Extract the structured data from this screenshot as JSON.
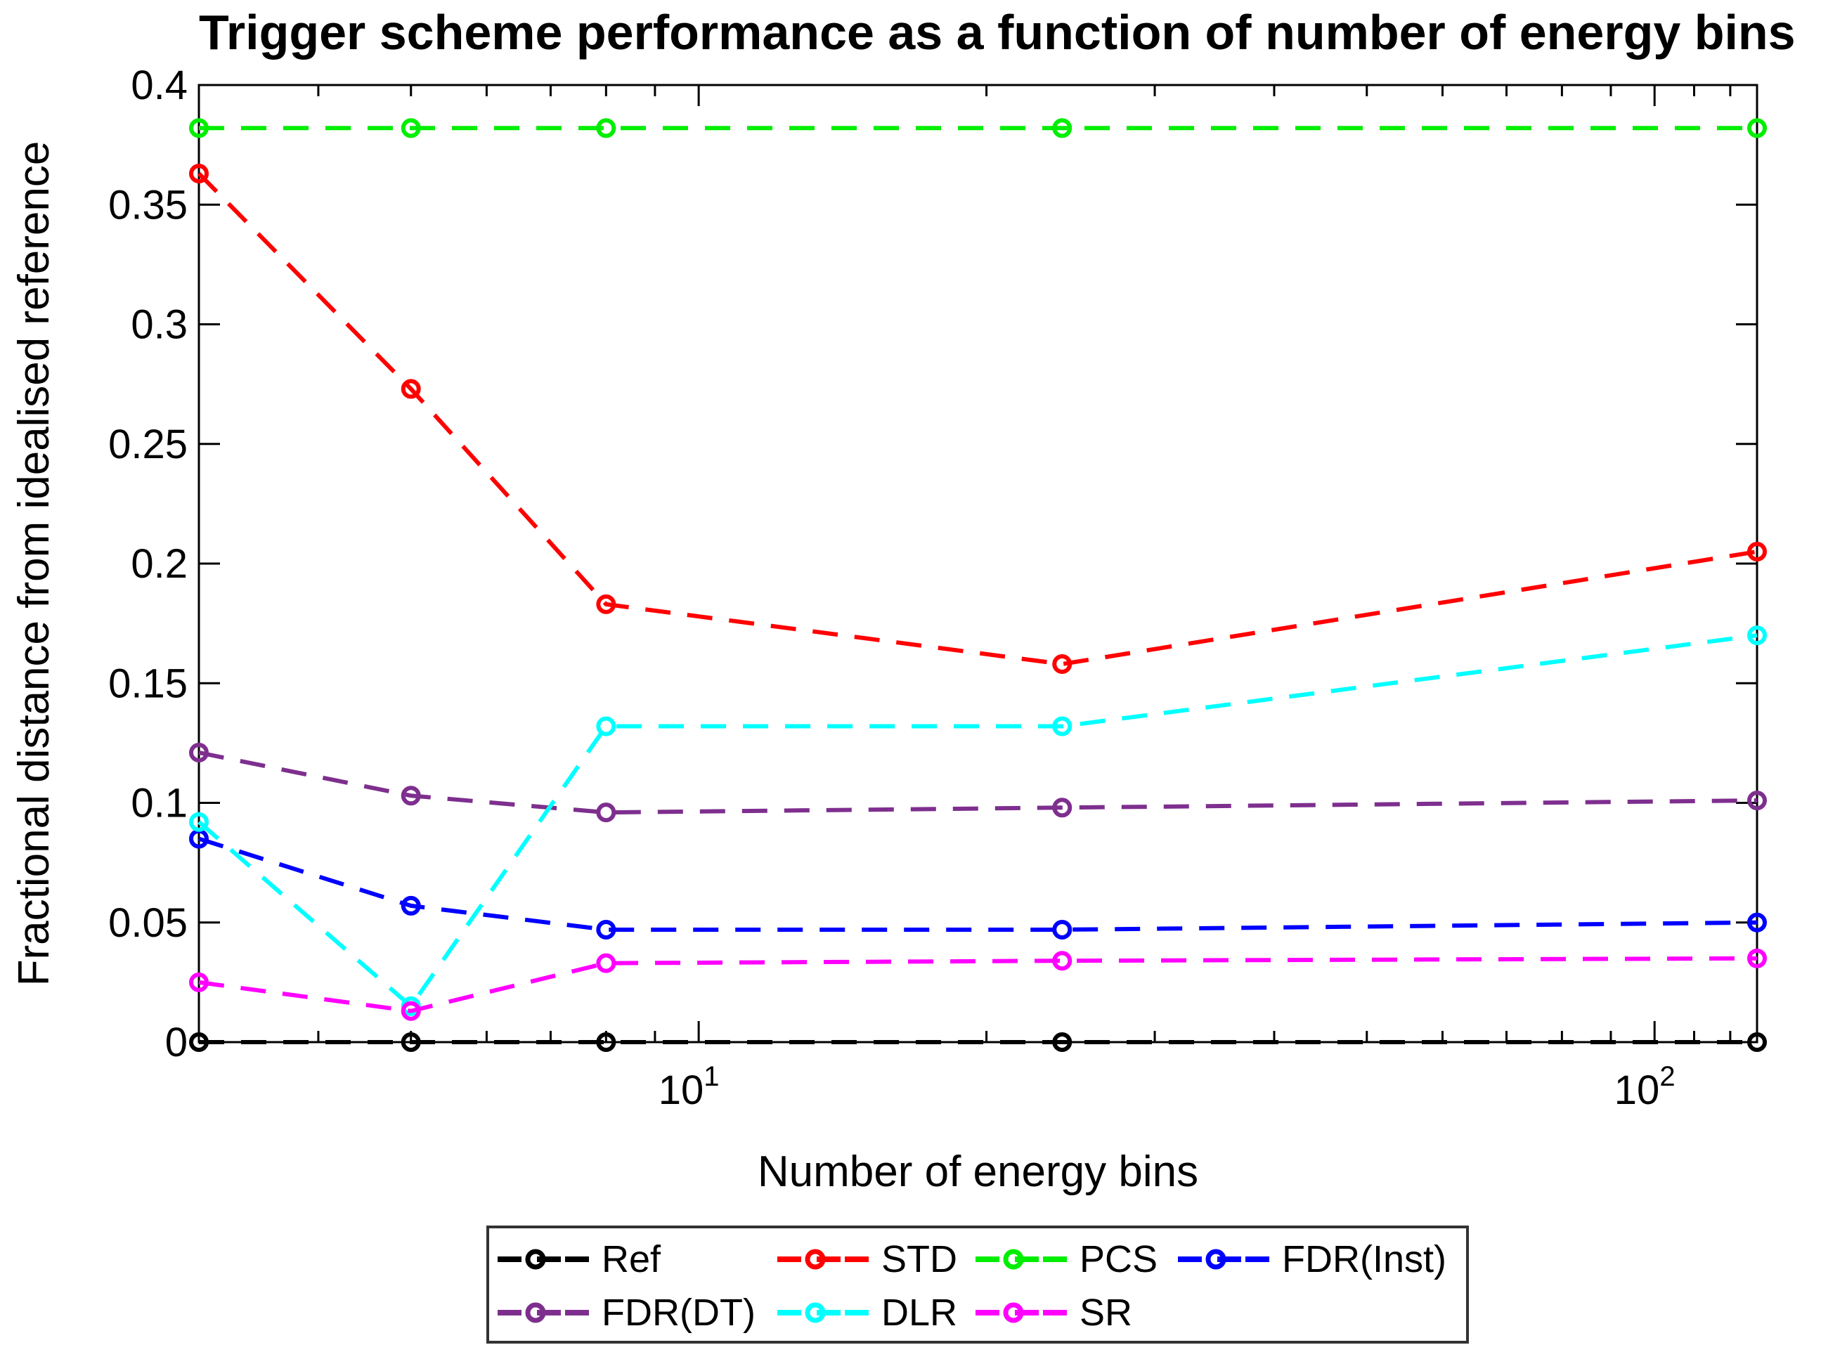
{
  "chart_data": {
    "type": "line",
    "title": "Trigger scheme performance as a function of number of energy bins",
    "xlabel": "Number of energy bins",
    "ylabel": "Fractional distance from idealised reference",
    "x_scale": "log",
    "x": [
      3,
      5,
      8,
      24,
      128
    ],
    "xlim": [
      3,
      128
    ],
    "ylim": [
      0,
      0.4
    ],
    "grid": false,
    "line_style": "dashed",
    "marker": "open-circle",
    "x_major_ticks": [
      {
        "value": 10,
        "base": "10",
        "exp": "1"
      },
      {
        "value": 100,
        "base": "10",
        "exp": "2"
      }
    ],
    "x_minor_ticks": [
      4,
      5,
      6,
      7,
      8,
      9,
      20,
      30,
      40,
      50,
      60,
      70,
      80,
      90,
      110,
      120
    ],
    "y_ticks": [
      {
        "value": 0,
        "label": "0"
      },
      {
        "value": 0.05,
        "label": "0.05"
      },
      {
        "value": 0.1,
        "label": "0.1"
      },
      {
        "value": 0.15,
        "label": "0.15"
      },
      {
        "value": 0.2,
        "label": "0.2"
      },
      {
        "value": 0.25,
        "label": "0.25"
      },
      {
        "value": 0.3,
        "label": "0.3"
      },
      {
        "value": 0.35,
        "label": "0.35"
      },
      {
        "value": 0.4,
        "label": "0.4"
      }
    ],
    "series": [
      {
        "name": "Ref",
        "color": "#000000",
        "values": [
          0,
          0,
          0,
          0,
          0
        ]
      },
      {
        "name": "STD",
        "color": "#FF0000",
        "values": [
          0.363,
          0.273,
          0.183,
          0.158,
          0.205
        ]
      },
      {
        "name": "PCS",
        "color": "#00EE00",
        "values": [
          0.382,
          0.382,
          0.382,
          0.382,
          0.382
        ]
      },
      {
        "name": "FDR(Inst)",
        "color": "#0000FF",
        "values": [
          0.085,
          0.057,
          0.047,
          0.047,
          0.05
        ]
      },
      {
        "name": "FDR(DT)",
        "color": "#7E2F8E",
        "values": [
          0.121,
          0.103,
          0.096,
          0.098,
          0.101
        ]
      },
      {
        "name": "DLR",
        "color": "#00FFFF",
        "values": [
          0.092,
          0.015,
          0.132,
          0.132,
          0.17
        ]
      },
      {
        "name": "SR",
        "color": "#FF00FF",
        "values": [
          0.025,
          0.013,
          0.033,
          0.034,
          0.035
        ]
      }
    ],
    "legend": {
      "position": "below-axis",
      "rows": [
        [
          "Ref",
          "STD",
          "PCS",
          "FDR(Inst)"
        ],
        [
          "FDR(DT)",
          "DLR",
          "SR"
        ]
      ]
    }
  }
}
